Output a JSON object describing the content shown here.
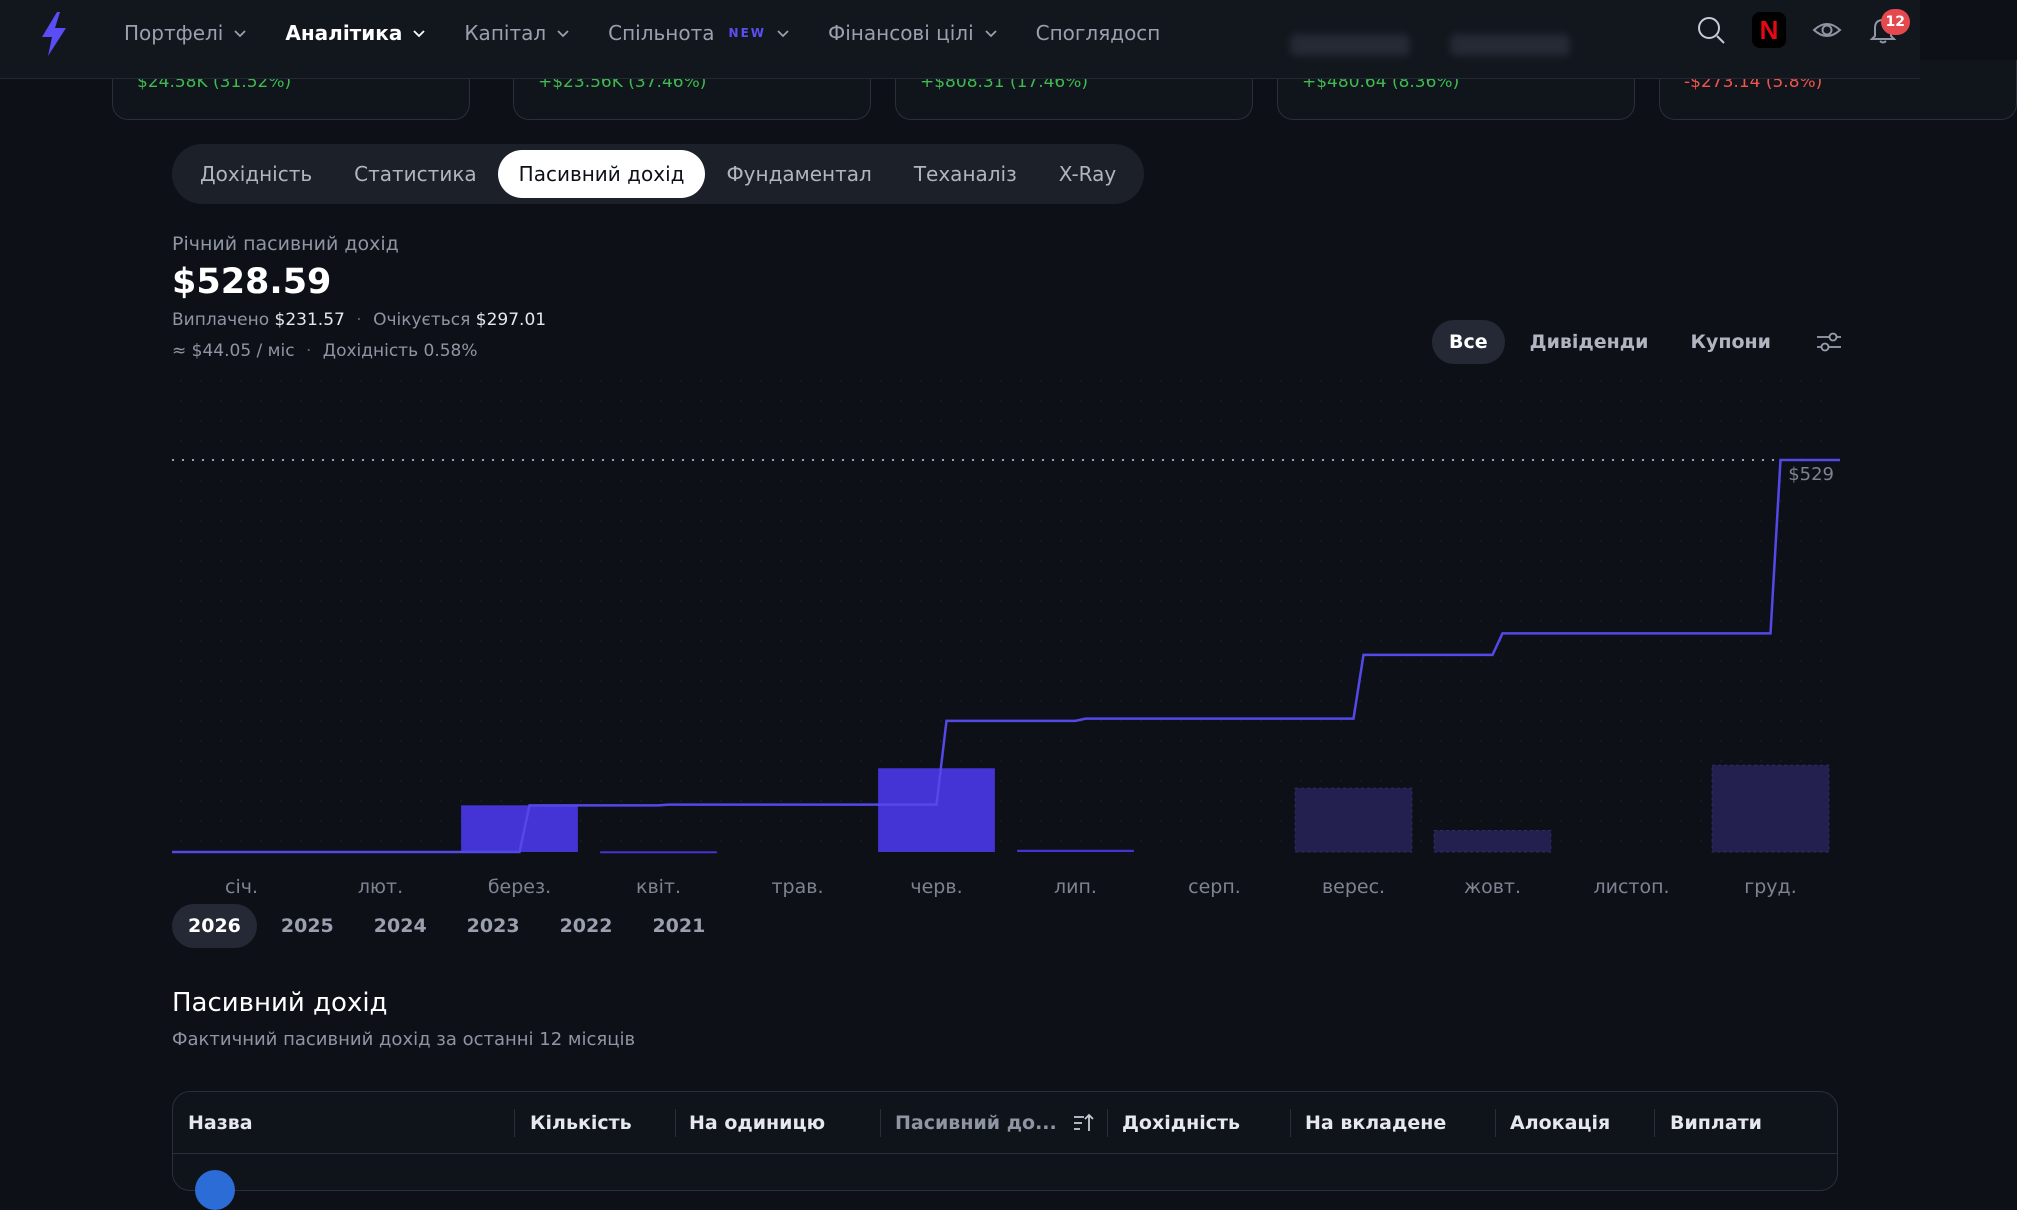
{
  "nav": {
    "items": [
      {
        "label": "Портфелі",
        "has_dropdown": true,
        "active": false
      },
      {
        "label": "Аналітика",
        "has_dropdown": true,
        "active": true
      },
      {
        "label": "Капітал",
        "has_dropdown": true,
        "active": false
      },
      {
        "label": "Спільнота",
        "badge": "NEW",
        "has_dropdown": true,
        "active": false
      },
      {
        "label": "Фінансові цілі",
        "has_dropdown": true,
        "active": false
      },
      {
        "label": "Споглядосп",
        "has_dropdown": false,
        "active": false
      }
    ],
    "notification_count": "12",
    "netflix_glyph": "N",
    "icons": [
      "bolt-logo-icon",
      "search-icon",
      "netflix-icon",
      "eye-icon",
      "bell-icon"
    ]
  },
  "portfolio_cards": [
    {
      "change": "$24.58K (31.52%)",
      "tone": "pos"
    },
    {
      "change": "+$23.56K (37.46%)",
      "tone": "pos"
    },
    {
      "change": "+$808.31 (17.46%)",
      "tone": "pos"
    },
    {
      "change": "+$480.64 (8.36%)",
      "tone": "pos"
    },
    {
      "change": "-$273.14 (5.8%)",
      "tone": "neg"
    }
  ],
  "tabs": [
    "Дохідність",
    "Статистика",
    "Пасивний дохід",
    "Фундаментал",
    "Теханаліз",
    "X-Ray"
  ],
  "active_tab": "Пасивний дохід",
  "income": {
    "label": "Річний пасивний дохід",
    "total": "$528.59",
    "paid_label": "Виплачено",
    "paid": "$231.57",
    "expected_label": "Очікується",
    "expected": "$297.01",
    "monthly": "≈ $44.05 / міс",
    "yield_label": "Дохідність",
    "yield": "0.58%"
  },
  "filters": [
    "Все",
    "Дивіденди",
    "Купони"
  ],
  "active_filter": "Все",
  "chart_data": {
    "type": "bar",
    "categories": [
      "січ.",
      "лют.",
      "берез.",
      "квіт.",
      "трав.",
      "черв.",
      "лип.",
      "серп.",
      "верес.",
      "жовт.",
      "листоп.",
      "груд."
    ],
    "series": [
      {
        "status": "paid",
        "values": [
          0,
          0,
          63,
          1,
          0,
          113,
          3,
          0,
          0,
          0,
          0,
          0
        ]
      },
      {
        "status": "expected",
        "values": [
          0,
          0,
          0,
          0,
          0,
          0,
          0,
          0,
          86,
          29,
          0,
          117
        ]
      }
    ],
    "cumulative_line": {
      "values": [
        0,
        0,
        63,
        64,
        64,
        177,
        180,
        180,
        266,
        295,
        295,
        529
      ]
    },
    "max_label": "$529",
    "ylim": [
      0,
      529
    ],
    "accent": "#4434d6",
    "expected_color": "#23204f",
    "line_color": "#5548e8"
  },
  "years": [
    "2026",
    "2025",
    "2024",
    "2023",
    "2022",
    "2021"
  ],
  "active_year": "2026",
  "table": {
    "title": "Пасивний дохід",
    "subtitle": "Фактичний пасивний дохід за останні 12 місяців",
    "columns": [
      {
        "label": "Назва"
      },
      {
        "label": "Кількість"
      },
      {
        "label": "На одиницю"
      },
      {
        "label": "Пасивний до...",
        "sorted": true
      },
      {
        "label": "Дохідність"
      },
      {
        "label": "На вкладене"
      },
      {
        "label": "Алокація"
      },
      {
        "label": "Виплати"
      }
    ]
  }
}
